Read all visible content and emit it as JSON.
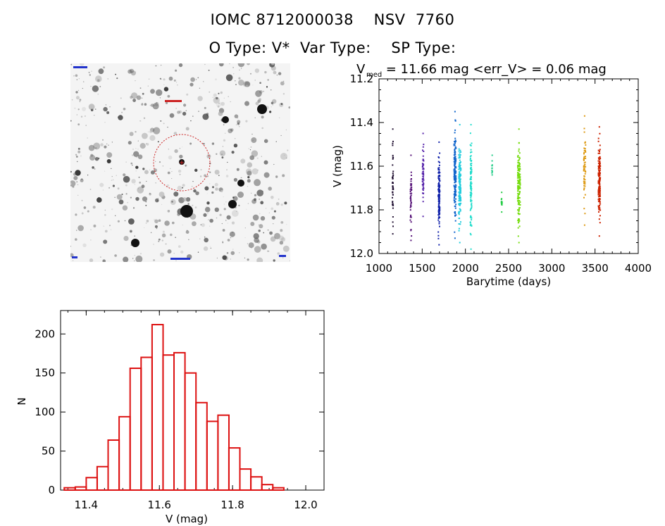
{
  "header": {
    "title_line1": "IOMC 8712000038    NSV  7760",
    "title_line2": "O Type: V*  Var Type:    SP Type:"
  },
  "colors": {
    "axis": "#000000",
    "histogram": "#dd1111",
    "finder_circle": "#cc2222",
    "finder_label": "#2233cc"
  },
  "chart_data": [
    {
      "type": "scatter",
      "title_parts": {
        "v": "V",
        "sub": "med",
        "rest": " = 11.66 mag <err_V> = 0.06 mag"
      },
      "xlabel": "Barytime (days)",
      "ylabel": "V (mag)",
      "xlim": [
        1000,
        4000
      ],
      "ylim": [
        12.0,
        11.2
      ],
      "x_ticks": [
        1000,
        1500,
        2000,
        2500,
        3000,
        3500,
        4000
      ],
      "y_ticks": [
        "11.2",
        "11.4",
        "11.6",
        "11.8",
        "12.0"
      ],
      "clusters": [
        {
          "x": 1160,
          "width": 10,
          "ymin": 11.43,
          "ymax": 11.91,
          "n": 45,
          "color": "#221133"
        },
        {
          "x": 1370,
          "width": 14,
          "ymin": 11.55,
          "ymax": 11.94,
          "n": 45,
          "color": "#551177"
        },
        {
          "x": 1510,
          "width": 14,
          "ymin": 11.45,
          "ymax": 11.83,
          "n": 60,
          "color": "#5522aa"
        },
        {
          "x": 1695,
          "width": 18,
          "ymin": 11.49,
          "ymax": 11.96,
          "n": 120,
          "color": "#1122aa"
        },
        {
          "x": 1880,
          "width": 22,
          "ymin": 11.35,
          "ymax": 11.93,
          "n": 160,
          "color": "#1166cc"
        },
        {
          "x": 1935,
          "width": 26,
          "ymin": 11.41,
          "ymax": 11.95,
          "n": 140,
          "color": "#22ccdd"
        },
        {
          "x": 2065,
          "width": 16,
          "ymin": 11.41,
          "ymax": 11.98,
          "n": 100,
          "color": "#22ddcc"
        },
        {
          "x": 2310,
          "width": 6,
          "ymin": 11.55,
          "ymax": 11.64,
          "n": 10,
          "color": "#22cc88"
        },
        {
          "x": 2420,
          "width": 8,
          "ymin": 11.72,
          "ymax": 11.81,
          "n": 12,
          "color": "#22cc44"
        },
        {
          "x": 2620,
          "width": 30,
          "ymin": 11.43,
          "ymax": 11.95,
          "n": 150,
          "color": "#77dd11"
        },
        {
          "x": 3380,
          "width": 22,
          "ymin": 11.37,
          "ymax": 11.87,
          "n": 60,
          "color": "#dd9911"
        },
        {
          "x": 3550,
          "width": 22,
          "ymin": 11.42,
          "ymax": 11.92,
          "n": 150,
          "color": "#cc2200"
        }
      ]
    },
    {
      "type": "bar",
      "xlabel": "V (mag)",
      "ylabel": "N",
      "xlim": [
        11.33,
        12.05
      ],
      "ylim": [
        0,
        230
      ],
      "x_ticks": [
        "11.4",
        "11.6",
        "11.8",
        "12.0"
      ],
      "y_ticks": [
        "0",
        "50",
        "100",
        "150",
        "200"
      ],
      "bin_width": 0.03,
      "bins": [
        {
          "left": 11.34,
          "count": 3
        },
        {
          "left": 11.37,
          "count": 4
        },
        {
          "left": 11.4,
          "count": 16
        },
        {
          "left": 11.43,
          "count": 30
        },
        {
          "left": 11.46,
          "count": 64
        },
        {
          "left": 11.49,
          "count": 94
        },
        {
          "left": 11.52,
          "count": 156
        },
        {
          "left": 11.55,
          "count": 170
        },
        {
          "left": 11.58,
          "count": 212
        },
        {
          "left": 11.61,
          "count": 173
        },
        {
          "left": 11.64,
          "count": 176
        },
        {
          "left": 11.67,
          "count": 150
        },
        {
          "left": 11.7,
          "count": 112
        },
        {
          "left": 11.73,
          "count": 88
        },
        {
          "left": 11.76,
          "count": 96
        },
        {
          "left": 11.79,
          "count": 54
        },
        {
          "left": 11.82,
          "count": 27
        },
        {
          "left": 11.85,
          "count": 17
        },
        {
          "left": 11.88,
          "count": 7
        },
        {
          "left": 11.91,
          "count": 3
        }
      ]
    }
  ]
}
